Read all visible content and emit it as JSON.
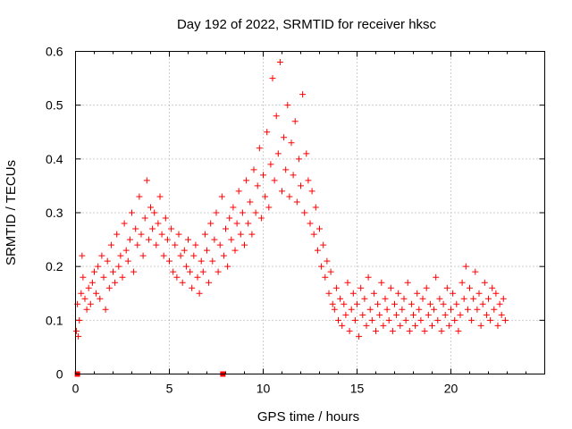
{
  "chart_data": {
    "type": "scatter",
    "title": "Day 192 of 2022, SRMTID for receiver hksc",
    "xlabel": "GPS time / hours",
    "ylabel": "SRMTID / TECUs",
    "xlim": [
      0,
      25
    ],
    "ylim": [
      0,
      0.6
    ],
    "xticks": [
      0,
      5,
      10,
      15,
      20
    ],
    "yticks": [
      0,
      0.1,
      0.2,
      0.3,
      0.4,
      0.5,
      0.6
    ],
    "xtick_labels": [
      "0",
      "5",
      "10",
      "15",
      "20"
    ],
    "ytick_labels": [
      "0",
      "0.1",
      "0.2",
      "0.3",
      "0.4",
      "0.5",
      "0.6"
    ],
    "grid": true,
    "series": [
      {
        "name": "SRMTID",
        "marker": "+",
        "color": "#ff0000",
        "x": [
          0.05,
          0.1,
          0.15,
          0.2,
          0.3,
          0.35,
          0.4,
          0.5,
          0.6,
          0.7,
          0.8,
          0.9,
          1.0,
          1.1,
          1.2,
          1.3,
          1.4,
          1.5,
          1.6,
          1.7,
          1.8,
          1.9,
          2.0,
          2.1,
          2.2,
          2.3,
          2.4,
          2.5,
          2.6,
          2.7,
          2.8,
          2.9,
          3.0,
          3.1,
          3.2,
          3.3,
          3.4,
          3.5,
          3.6,
          3.7,
          3.8,
          3.9,
          4.0,
          4.1,
          4.2,
          4.3,
          4.4,
          4.5,
          4.6,
          4.7,
          4.8,
          4.9,
          5.0,
          5.1,
          5.2,
          5.3,
          5.4,
          5.5,
          5.6,
          5.7,
          5.8,
          5.9,
          6.0,
          6.1,
          6.2,
          6.3,
          6.4,
          6.5,
          6.6,
          6.7,
          6.8,
          6.9,
          7.0,
          7.1,
          7.2,
          7.3,
          7.4,
          7.5,
          7.6,
          7.7,
          7.8,
          7.9,
          8.0,
          8.1,
          8.2,
          8.3,
          8.4,
          8.5,
          8.6,
          8.7,
          8.8,
          8.9,
          9.0,
          9.1,
          9.2,
          9.3,
          9.4,
          9.5,
          9.6,
          9.7,
          9.8,
          9.9,
          10.0,
          10.1,
          10.2,
          10.3,
          10.4,
          10.5,
          10.6,
          10.7,
          10.8,
          10.9,
          11.0,
          11.1,
          11.2,
          11.3,
          11.4,
          11.5,
          11.6,
          11.7,
          11.8,
          11.9,
          12.0,
          12.1,
          12.2,
          12.3,
          12.4,
          12.5,
          12.6,
          12.7,
          12.8,
          12.9,
          13.0,
          13.1,
          13.2,
          13.3,
          13.4,
          13.5,
          13.6,
          13.7,
          13.8,
          13.9,
          14.0,
          14.1,
          14.2,
          14.3,
          14.4,
          14.5,
          14.6,
          14.7,
          14.8,
          14.9,
          15.0,
          15.1,
          15.2,
          15.3,
          15.4,
          15.5,
          15.6,
          15.7,
          15.8,
          15.9,
          16.0,
          16.1,
          16.2,
          16.3,
          16.4,
          16.5,
          16.6,
          16.7,
          16.8,
          16.9,
          17.0,
          17.1,
          17.2,
          17.3,
          17.4,
          17.5,
          17.6,
          17.7,
          17.8,
          17.9,
          18.0,
          18.1,
          18.2,
          18.3,
          18.4,
          18.5,
          18.6,
          18.7,
          18.8,
          18.9,
          19.0,
          19.1,
          19.2,
          19.3,
          19.4,
          19.5,
          19.6,
          19.7,
          19.8,
          19.9,
          20.0,
          20.1,
          20.2,
          20.3,
          20.4,
          20.5,
          20.6,
          20.7,
          20.8,
          20.9,
          21.0,
          21.1,
          21.2,
          21.3,
          21.4,
          21.5,
          21.6,
          21.7,
          21.8,
          21.9,
          22.0,
          22.1,
          22.2,
          22.3,
          22.4,
          22.5,
          22.6,
          22.7,
          22.8,
          22.9
        ],
        "y": [
          0.08,
          0.13,
          0.07,
          0.1,
          0.15,
          0.22,
          0.18,
          0.14,
          0.12,
          0.16,
          0.13,
          0.17,
          0.19,
          0.15,
          0.2,
          0.14,
          0.22,
          0.18,
          0.12,
          0.21,
          0.16,
          0.24,
          0.19,
          0.17,
          0.26,
          0.2,
          0.22,
          0.18,
          0.28,
          0.23,
          0.21,
          0.25,
          0.3,
          0.19,
          0.27,
          0.24,
          0.33,
          0.26,
          0.22,
          0.29,
          0.36,
          0.25,
          0.31,
          0.27,
          0.3,
          0.24,
          0.28,
          0.33,
          0.26,
          0.22,
          0.29,
          0.25,
          0.21,
          0.27,
          0.19,
          0.24,
          0.18,
          0.26,
          0.22,
          0.17,
          0.23,
          0.2,
          0.25,
          0.19,
          0.16,
          0.22,
          0.24,
          0.18,
          0.15,
          0.21,
          0.19,
          0.26,
          0.23,
          0.17,
          0.28,
          0.21,
          0.25,
          0.3,
          0.19,
          0.24,
          0.33,
          0.22,
          0.27,
          0.2,
          0.29,
          0.25,
          0.31,
          0.23,
          0.28,
          0.34,
          0.26,
          0.3,
          0.24,
          0.36,
          0.28,
          0.32,
          0.26,
          0.38,
          0.3,
          0.35,
          0.42,
          0.29,
          0.37,
          0.33,
          0.45,
          0.31,
          0.39,
          0.55,
          0.36,
          0.48,
          0.41,
          0.58,
          0.34,
          0.44,
          0.38,
          0.5,
          0.33,
          0.43,
          0.37,
          0.47,
          0.32,
          0.4,
          0.35,
          0.52,
          0.3,
          0.41,
          0.36,
          0.28,
          0.34,
          0.26,
          0.31,
          0.23,
          0.27,
          0.2,
          0.24,
          0.18,
          0.21,
          0.15,
          0.19,
          0.13,
          0.12,
          0.16,
          0.1,
          0.14,
          0.09,
          0.13,
          0.11,
          0.17,
          0.08,
          0.12,
          0.15,
          0.1,
          0.13,
          0.07,
          0.16,
          0.11,
          0.14,
          0.09,
          0.18,
          0.12,
          0.1,
          0.15,
          0.08,
          0.13,
          0.11,
          0.17,
          0.09,
          0.14,
          0.12,
          0.1,
          0.16,
          0.08,
          0.13,
          0.11,
          0.15,
          0.09,
          0.12,
          0.14,
          0.1,
          0.17,
          0.08,
          0.13,
          0.11,
          0.09,
          0.15,
          0.12,
          0.1,
          0.14,
          0.08,
          0.16,
          0.11,
          0.13,
          0.09,
          0.12,
          0.18,
          0.1,
          0.14,
          0.08,
          0.13,
          0.11,
          0.16,
          0.09,
          0.12,
          0.15,
          0.1,
          0.13,
          0.08,
          0.11,
          0.17,
          0.14,
          0.2,
          0.12,
          0.16,
          0.1,
          0.14,
          0.19,
          0.12,
          0.15,
          0.09,
          0.13,
          0.17,
          0.11,
          0.14,
          0.1,
          0.16,
          0.12,
          0.15,
          0.09,
          0.13,
          0.11,
          0.14,
          0.1
        ]
      }
    ],
    "axis_markers": [
      0.1,
      7.85
    ]
  }
}
